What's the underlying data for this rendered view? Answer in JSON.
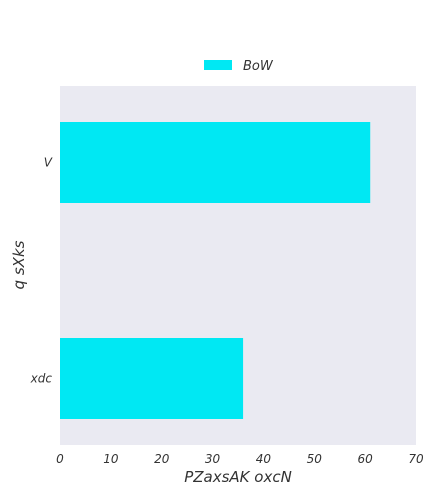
{
  "chart_data": {
    "type": "bar",
    "orientation": "horizontal",
    "categories": [
      "V",
      "xdc"
    ],
    "series": [
      {
        "name": "BoW",
        "values": [
          61,
          36
        ],
        "color": "#00e8f3"
      }
    ],
    "xlabel": "PZaxsAK oxcN",
    "ylabel": "q sXks",
    "xlim": [
      0,
      70
    ],
    "xticks": [
      "0",
      "10",
      "20",
      "30",
      "40",
      "50",
      "60",
      "70"
    ],
    "grid": false,
    "legend_position": "top-center",
    "plot_background": "#eaeaf2"
  }
}
